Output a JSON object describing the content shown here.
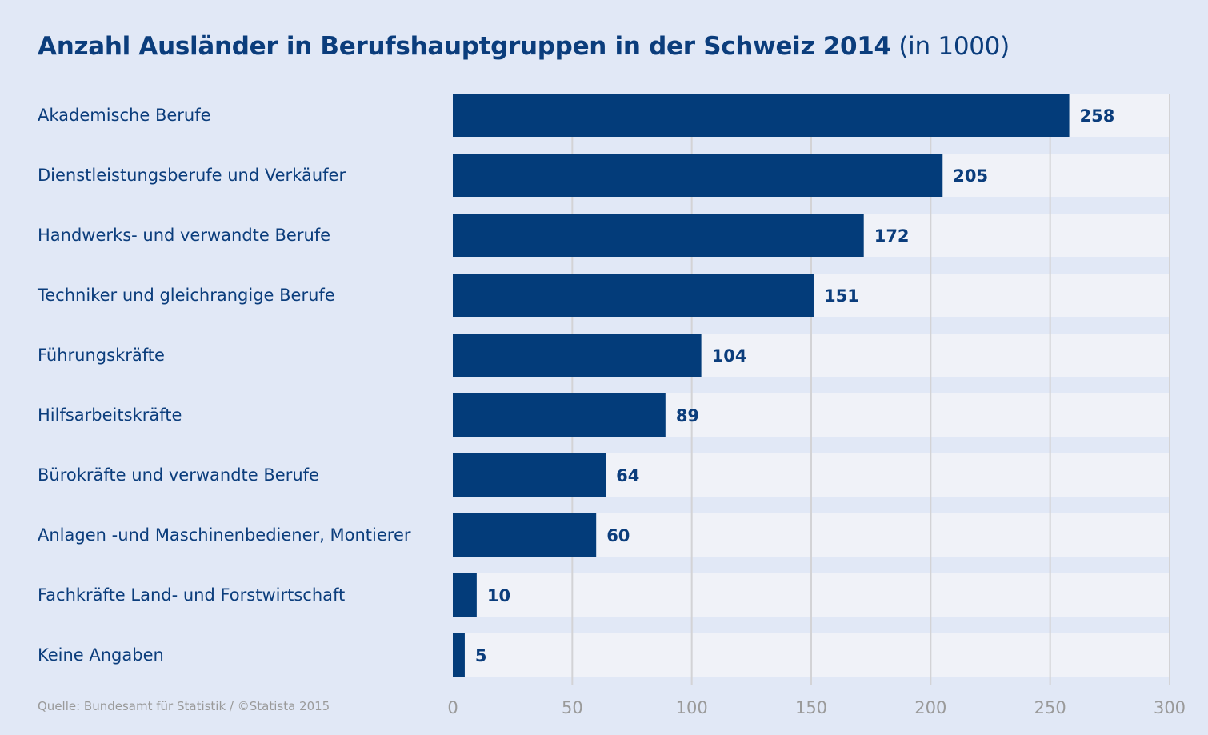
{
  "chart_data": {
    "type": "bar",
    "orientation": "horizontal",
    "title": "Anzahl Ausländer in Berufshauptgruppen in der Schweiz 2014",
    "unit": "(in 1000)",
    "categories": [
      "Akademische Berufe",
      "Dienstleistungsberufe und Verkäufer",
      "Handwerks- und verwandte Berufe",
      "Techniker und gleichrangige Berufe",
      "Führungskräfte",
      "Hilfsarbeitskräfte",
      "Bürokräfte und verwandte Berufe",
      "Anlagen -und Maschinenbediener, Montierer",
      "Fachkräfte Land- und Forstwirtschaft",
      "Keine Angaben"
    ],
    "values": [
      258,
      205,
      172,
      151,
      104,
      89,
      64,
      60,
      10,
      5
    ],
    "xlim": [
      0,
      300
    ],
    "xticks": [
      "0",
      "50",
      "100",
      "150",
      "200",
      "250",
      "300"
    ],
    "grid": true,
    "colors": {
      "bar": "#033c7a",
      "text": "#0b3d7c",
      "row": "#f0f2f8",
      "background": "#e1e8f6",
      "grid": "#d3d3d6",
      "tick": "#9a9a9a"
    }
  },
  "source": "Quelle: Bundesamt für Statistik / ©Statista 2015"
}
